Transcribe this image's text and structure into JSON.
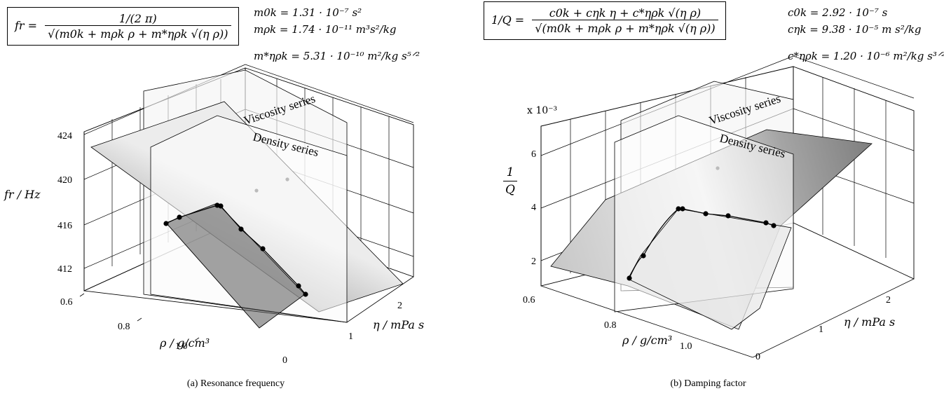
{
  "chart_data": [
    {
      "type": "surface3d",
      "caption": "(a)  Resonance frequency",
      "formula": "f_r = 1/(2π) / √(m_0k + m_ρk ρ + m*_ηρk √(ηρ))",
      "formula_lhs": "fr =",
      "formula_num": "1/(2 π)",
      "formula_den": "√(m0k + mρk ρ + m*ηρk √(η ρ))",
      "params": [
        "m0k = 1.31 · 10⁻⁷ s²",
        "mρk = 1.74 · 10⁻¹¹ m³s²/kg",
        "m*ηρk = 5.31 · 10⁻¹⁰ m²/kg s⁵ᐟ²"
      ],
      "zlabel": "fr / Hz",
      "xlabel": "ρ / g/cm³",
      "ylabel": "η / mPa s",
      "zticks": [
        "412",
        "416",
        "420",
        "424"
      ],
      "zvalues": [
        412,
        416,
        420,
        424
      ],
      "xticks": [
        "0.6",
        "0.8",
        "1.0"
      ],
      "yticks": [
        "0",
        "1",
        "2"
      ],
      "plane_labels": [
        "Viscosity series",
        "Density series"
      ],
      "data_points": [
        {
          "rho": 0.79,
          "eta": 1.2,
          "z": 416.0
        },
        {
          "rho": 0.8,
          "eta": 1.0,
          "z": 416.5
        },
        {
          "rho": 0.79,
          "eta": 0.5,
          "z": 417.4
        },
        {
          "rho": 0.8,
          "eta": 0.45,
          "z": 417.4
        },
        {
          "rho": 0.86,
          "eta": 0.45,
          "z": 416.2
        },
        {
          "rho": 0.92,
          "eta": 0.45,
          "z": 415.2
        },
        {
          "rho": 1.05,
          "eta": 0.45,
          "z": 412.4
        },
        {
          "rho": 1.08,
          "eta": 0.45,
          "z": 412.0
        }
      ]
    },
    {
      "type": "surface3d",
      "caption": "(b)  Damping factor",
      "formula_lhs": "1/Q =",
      "formula_num": "c0k + cηk η + c*ηρk √(η ρ)",
      "formula_den": "√(m0k + mρk ρ + m*ηρk √(η ρ))",
      "params": [
        "c0k = 2.92 · 10⁻⁷ s",
        "cηk = 9.38 · 10⁻⁵ m s²/kg",
        "c*ηρk = 1.20 · 10⁻⁶ m²/kg s³ᐟ²"
      ],
      "zlabel_num": "1",
      "zlabel_den": "Q",
      "zscale": "x 10⁻³",
      "xlabel": "ρ / g/cm³",
      "ylabel": "η / mPa s",
      "zticks": [
        "2",
        "4",
        "6"
      ],
      "zvalues": [
        2,
        4,
        6
      ],
      "xticks": [
        "0.6",
        "0.8",
        "1.0"
      ],
      "yticks": [
        "0",
        "1",
        "2"
      ],
      "plane_labels": [
        "Viscosity series",
        "Density series"
      ],
      "data_points": [
        {
          "rho": 0.78,
          "eta": 0.45,
          "z": 1.8
        },
        {
          "rho": 0.79,
          "eta": 0.5,
          "z": 2.8
        },
        {
          "rho": 0.79,
          "eta": 1.0,
          "z": 3.9
        },
        {
          "rho": 0.8,
          "eta": 1.1,
          "z": 3.9
        },
        {
          "rho": 0.86,
          "eta": 1.2,
          "z": 3.8
        },
        {
          "rho": 0.92,
          "eta": 1.2,
          "z": 3.75
        },
        {
          "rho": 1.05,
          "eta": 1.2,
          "z": 3.6
        },
        {
          "rho": 1.08,
          "eta": 1.2,
          "z": 3.55
        }
      ]
    }
  ]
}
